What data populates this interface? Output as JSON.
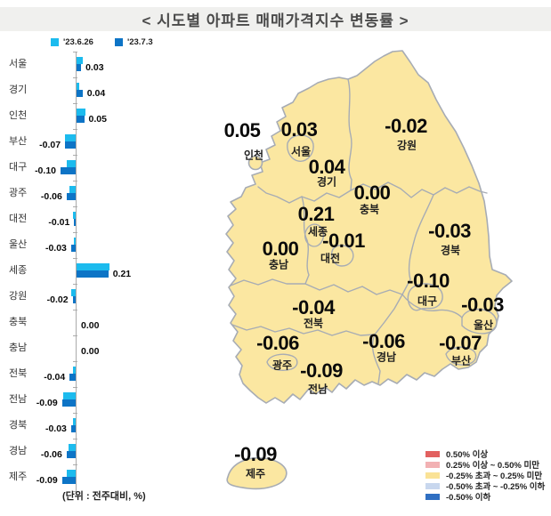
{
  "title": "<  시도별  아파트  매매가격지수  변동률  >",
  "unit_note": "(단위 : 전주대비, %)",
  "series_legend": [
    {
      "label": "'23.6.26",
      "color": "#1CBBEE"
    },
    {
      "label": "'23.7.3",
      "color": "#0D74C6"
    }
  ],
  "chart_data": {
    "type": "bar",
    "orientation": "horizontal",
    "title": "시도별 아파트 매매가격지수 변동률",
    "unit": "전주대비, %",
    "categories": [
      "서울",
      "경기",
      "인천",
      "부산",
      "대구",
      "광주",
      "대전",
      "울산",
      "세종",
      "강원",
      "충북",
      "충남",
      "전북",
      "전남",
      "경북",
      "경남",
      "제주"
    ],
    "series": [
      {
        "name": "'23.6.26",
        "color": "#1CBBEE",
        "values": [
          0.04,
          0.02,
          0.06,
          -0.07,
          -0.06,
          -0.04,
          -0.02,
          -0.01,
          0.22,
          -0.03,
          0.0,
          0.0,
          -0.02,
          -0.08,
          -0.02,
          -0.05,
          -0.06
        ]
      },
      {
        "name": "'23.7.3",
        "color": "#0D74C6",
        "values": [
          0.03,
          0.04,
          0.05,
          -0.07,
          -0.1,
          -0.06,
          -0.01,
          -0.03,
          0.21,
          -0.02,
          0.0,
          0.0,
          -0.04,
          -0.09,
          -0.03,
          -0.06,
          -0.09
        ]
      }
    ],
    "value_labels_series": "'23.7.3",
    "note": "values of '23.6.26 series estimated from bar lengths (not labeled in image)"
  },
  "map": {
    "fill": "#FBE7A1",
    "border": "#A7ACB4",
    "regions": [
      {
        "id": "incheon",
        "name": "인천",
        "value": "0.05"
      },
      {
        "id": "seoul",
        "name": "서울",
        "value": "0.03"
      },
      {
        "id": "gangwon",
        "name": "강원",
        "value": "-0.02"
      },
      {
        "id": "gyeonggi",
        "name": "경기",
        "value": "0.04"
      },
      {
        "id": "chungbuk",
        "name": "충북",
        "value": "0.00"
      },
      {
        "id": "sejong",
        "name": "세종",
        "value": "0.21"
      },
      {
        "id": "daejeon",
        "name": "대전",
        "value": "-0.01"
      },
      {
        "id": "chungnam",
        "name": "충남",
        "value": "0.00"
      },
      {
        "id": "gyeongbuk",
        "name": "경북",
        "value": "-0.03"
      },
      {
        "id": "daegu",
        "name": "대구",
        "value": "-0.10"
      },
      {
        "id": "ulsan",
        "name": "울산",
        "value": "-0.03"
      },
      {
        "id": "jeonbuk",
        "name": "전북",
        "value": "-0.04"
      },
      {
        "id": "gwangju",
        "name": "광주",
        "value": "-0.06"
      },
      {
        "id": "gyeongnam",
        "name": "경남",
        "value": "-0.06"
      },
      {
        "id": "busan",
        "name": "부산",
        "value": "-0.07"
      },
      {
        "id": "jeonnam",
        "name": "전남",
        "value": "-0.09"
      },
      {
        "id": "jeju",
        "name": "제주",
        "value": "-0.09"
      }
    ],
    "legend": [
      {
        "color": "#E26160",
        "label": "0.50% 이상"
      },
      {
        "color": "#F2B1B3",
        "label": "0.25% 이상 ~ 0.50% 미만"
      },
      {
        "color": "#FAE296",
        "label": "-0.25% 초과 ~ 0.25% 미만"
      },
      {
        "color": "#C8D7EE",
        "label": "-0.50% 초과 ~ -0.25% 이하"
      },
      {
        "color": "#2F6FC2",
        "label": "-0.50% 이하"
      }
    ]
  }
}
